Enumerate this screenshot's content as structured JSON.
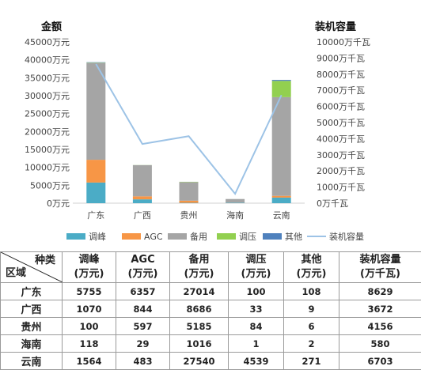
{
  "chart_data": {
    "type": "bar",
    "stacked": true,
    "categories": [
      "广东",
      "广西",
      "贵州",
      "海南",
      "云南"
    ],
    "series": [
      {
        "name": "调峰",
        "color": "#4BACC6",
        "values": [
          5755,
          1070,
          100,
          118,
          1564
        ]
      },
      {
        "name": "AGC",
        "color": "#F79646",
        "values": [
          6357,
          844,
          597,
          29,
          483
        ]
      },
      {
        "name": "备用",
        "color": "#A5A5A5",
        "values": [
          27014,
          8686,
          5185,
          1016,
          27540
        ]
      },
      {
        "name": "调压",
        "color": "#92D050",
        "values": [
          100,
          33,
          84,
          1,
          4539
        ]
      },
      {
        "name": "其他",
        "color": "#4F81BD",
        "values": [
          108,
          9,
          6,
          2,
          271
        ]
      }
    ],
    "line_series": {
      "name": "装机容量",
      "color": "#9DC3E6",
      "values": [
        8629,
        3672,
        4156,
        580,
        6703
      ]
    },
    "y_left": {
      "title": "金额",
      "ylim": [
        0,
        45000
      ],
      "ticks": [
        "0万元",
        "5000万元",
        "10000万元",
        "15000万元",
        "20000万元",
        "25000万元",
        "30000万元",
        "35000万元",
        "40000万元",
        "45000万元"
      ]
    },
    "y_right": {
      "title": "装机容量",
      "ylim": [
        0,
        10000
      ],
      "ticks": [
        "0万千瓦",
        "1000万千瓦",
        "2000万千瓦",
        "3000万千瓦",
        "4000万千瓦",
        "5000万千瓦",
        "6000万千瓦",
        "7000万千瓦",
        "8000万千瓦",
        "9000万千瓦",
        "10000万千瓦"
      ]
    },
    "legend_position": "bottom"
  },
  "table": {
    "corner_kind": "种类",
    "corner_area": "区域",
    "columns": [
      {
        "name": "调峰",
        "unit": "(万元)"
      },
      {
        "name": "AGC",
        "unit": "(万元)"
      },
      {
        "name": "备用",
        "unit": "(万元)"
      },
      {
        "name": "调压",
        "unit": "(万元)"
      },
      {
        "name": "其他",
        "unit": "(万元)"
      },
      {
        "name": "装机容量",
        "unit": "(万千瓦)"
      }
    ],
    "rows": [
      {
        "region": "广东",
        "values": [
          "5755",
          "6357",
          "27014",
          "100",
          "108",
          "8629"
        ]
      },
      {
        "region": "广西",
        "values": [
          "1070",
          "844",
          "8686",
          "33",
          "9",
          "3672"
        ]
      },
      {
        "region": "贵州",
        "values": [
          "100",
          "597",
          "5185",
          "84",
          "6",
          "4156"
        ]
      },
      {
        "region": "海南",
        "values": [
          "118",
          "29",
          "1016",
          "1",
          "2",
          "580"
        ]
      },
      {
        "region": "云南",
        "values": [
          "1564",
          "483",
          "27540",
          "4539",
          "271",
          "6703"
        ]
      }
    ]
  }
}
